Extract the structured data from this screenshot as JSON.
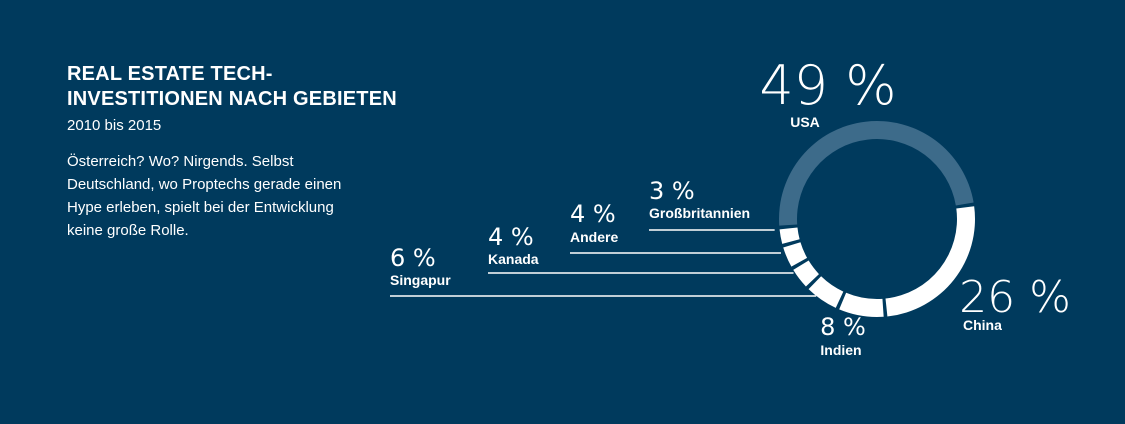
{
  "title_line1": "REAL ESTATE TECH-",
  "title_line2": "INVESTITIONEN NACH GEBIETEN",
  "subtitle": "2010 bis 2015",
  "description": "Österreich? Wo? Nirgends. Selbst Deutschland, wo Proptechs gerade einen Hype erleben, spielt bei der Entwicklung keine große Rolle.",
  "colors": {
    "background": "#003a5d",
    "highlight": "#3d6b8a",
    "segment": "#ffffff"
  },
  "chart_data": {
    "type": "pie",
    "style": "donut",
    "categories": [
      "USA",
      "China",
      "Indien",
      "Singapur",
      "Kanada",
      "Andere",
      "Großbritannien"
    ],
    "values": [
      49,
      26,
      8,
      6,
      4,
      4,
      3
    ],
    "unit": "%",
    "highlighted": "USA",
    "labels": [
      {
        "category": "USA",
        "value_text": "49 %"
      },
      {
        "category": "China",
        "value_text": "26 %"
      },
      {
        "category": "Indien",
        "value_text": "8 %"
      },
      {
        "category": "Singapur",
        "value_text": "6 %"
      },
      {
        "category": "Kanada",
        "value_text": "4 %"
      },
      {
        "category": "Andere",
        "value_text": "4 %"
      },
      {
        "category": "Großbritannien",
        "value_text": "3 %"
      }
    ]
  }
}
